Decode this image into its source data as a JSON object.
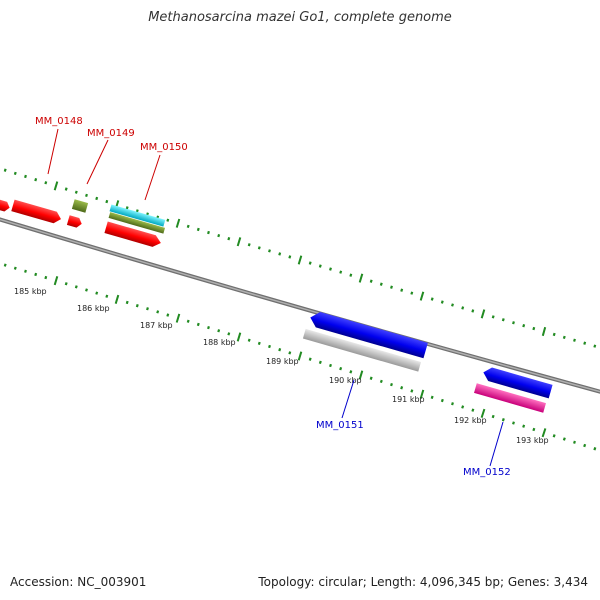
{
  "title": "Methanosarcina mazei Go1, complete genome",
  "footer": {
    "accession": "Accession: NC_003901",
    "summary": "Topology: circular; Length: 4,096,345 bp; Genes: 3,434"
  },
  "colors": {
    "backbone": "#808080",
    "ticks": "#228b22",
    "forward_label": "#cc0000",
    "reverse_label": "#0000cc"
  },
  "scale_labels": [
    "185 kbp",
    "186 kbp",
    "187 kbp",
    "188 kbp",
    "189 kbp",
    "190 kbp",
    "191 kbp",
    "192 kbp",
    "193 kbp"
  ],
  "gene_labels": [
    {
      "text": "MM_0148",
      "strand": "forward"
    },
    {
      "text": "MM_0149",
      "strand": "forward"
    },
    {
      "text": "MM_0150",
      "strand": "forward"
    },
    {
      "text": "MM_0151",
      "strand": "reverse"
    },
    {
      "text": "MM_0152",
      "strand": "reverse"
    }
  ],
  "feature_colors": [
    "red",
    "olive",
    "cyan",
    "blue",
    "gray",
    "magenta"
  ]
}
